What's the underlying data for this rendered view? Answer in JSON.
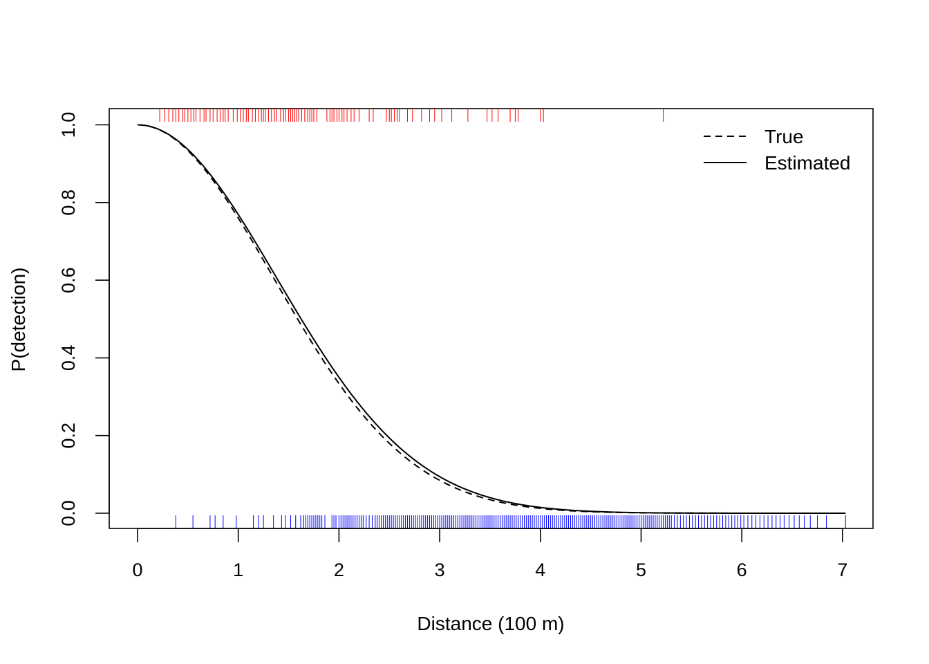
{
  "chart_data": {
    "type": "line",
    "title": "",
    "xlabel": "Distance (100 m)",
    "ylabel": "P(detection)",
    "xlim": [
      -0.29,
      7.3
    ],
    "ylim": [
      -0.04,
      1.04
    ],
    "x_ticks": [
      "0",
      "1",
      "2",
      "3",
      "4",
      "5",
      "6",
      "7"
    ],
    "y_ticks": [
      "0.0",
      "0.2",
      "0.4",
      "0.6",
      "0.8",
      "1.0"
    ],
    "grid": false,
    "legend_position": "top-right",
    "series": [
      {
        "name": "True",
        "style": "dashed",
        "color": "#000000",
        "sigma": 1.35
      },
      {
        "name": "Estimated",
        "style": "solid",
        "color": "#000000",
        "sigma": 1.38
      }
    ],
    "x_range": [
      0,
      7.03
    ],
    "rug_detected": {
      "color": "#ff0000",
      "values": [
        0.22,
        0.27,
        0.31,
        0.35,
        0.38,
        0.41,
        0.45,
        0.47,
        0.5,
        0.53,
        0.56,
        0.58,
        0.62,
        0.66,
        0.68,
        0.72,
        0.75,
        0.79,
        0.82,
        0.85,
        0.87,
        0.9,
        0.95,
        0.99,
        1.02,
        1.05,
        1.08,
        1.1,
        1.14,
        1.17,
        1.2,
        1.23,
        1.25,
        1.27,
        1.3,
        1.33,
        1.36,
        1.38,
        1.42,
        1.45,
        1.47,
        1.5,
        1.52,
        1.54,
        1.56,
        1.58,
        1.6,
        1.63,
        1.66,
        1.69,
        1.71,
        1.73,
        1.75,
        1.78,
        1.88,
        1.91,
        1.93,
        1.95,
        1.98,
        2.0,
        2.03,
        2.05,
        2.08,
        2.12,
        2.15,
        2.2,
        2.3,
        2.34,
        2.47,
        2.5,
        2.52,
        2.55,
        2.58,
        2.6,
        2.68,
        2.73,
        2.82,
        2.9,
        2.95,
        3.02,
        3.12,
        3.28,
        3.47,
        3.52,
        3.58,
        3.7,
        3.75,
        3.78,
        4.0,
        4.03,
        5.22
      ]
    },
    "rug_undetected": {
      "color": "#0000ff",
      "values": [
        0.38,
        0.55,
        0.72,
        0.77,
        0.85,
        0.98,
        1.15,
        1.2,
        1.25,
        1.35,
        1.43,
        1.47,
        1.52,
        1.57,
        1.62,
        1.65,
        1.67,
        1.69,
        1.71,
        1.73,
        1.75,
        1.77,
        1.79,
        1.81,
        1.83,
        1.86,
        1.93,
        1.95,
        1.97,
        2.0,
        2.02,
        2.04,
        2.06,
        2.08,
        2.1,
        2.12,
        2.14,
        2.16,
        2.18,
        2.2,
        2.22,
        2.24,
        2.27,
        2.3,
        2.33,
        2.36,
        2.38,
        2.4,
        2.42,
        2.44,
        2.46,
        2.48,
        2.5,
        2.52,
        2.54,
        2.56,
        2.58,
        2.6,
        2.62,
        2.64,
        2.66,
        2.68,
        2.7,
        2.72,
        2.74,
        2.76,
        2.78,
        2.8,
        2.82,
        2.84,
        2.86,
        2.88,
        2.9,
        2.92,
        2.94,
        2.96,
        2.98,
        3.0,
        3.02,
        3.04,
        3.06,
        3.08,
        3.1,
        3.12,
        3.14,
        3.16,
        3.18,
        3.2,
        3.22,
        3.24,
        3.26,
        3.28,
        3.3,
        3.32,
        3.34,
        3.36,
        3.38,
        3.4,
        3.42,
        3.44,
        3.46,
        3.48,
        3.5,
        3.52,
        3.54,
        3.56,
        3.58,
        3.6,
        3.62,
        3.64,
        3.66,
        3.68,
        3.7,
        3.72,
        3.74,
        3.76,
        3.78,
        3.8,
        3.82,
        3.84,
        3.86,
        3.88,
        3.9,
        3.92,
        3.94,
        3.96,
        3.98,
        4.0,
        4.02,
        4.04,
        4.06,
        4.08,
        4.1,
        4.12,
        4.14,
        4.16,
        4.18,
        4.2,
        4.22,
        4.24,
        4.26,
        4.28,
        4.3,
        4.32,
        4.34,
        4.36,
        4.38,
        4.4,
        4.42,
        4.44,
        4.46,
        4.48,
        4.5,
        4.52,
        4.54,
        4.56,
        4.58,
        4.6,
        4.62,
        4.64,
        4.66,
        4.68,
        4.7,
        4.72,
        4.74,
        4.76,
        4.78,
        4.8,
        4.82,
        4.84,
        4.86,
        4.88,
        4.9,
        4.92,
        4.94,
        4.96,
        4.98,
        5.0,
        5.02,
        5.04,
        5.06,
        5.08,
        5.1,
        5.12,
        5.14,
        5.16,
        5.18,
        5.2,
        5.22,
        5.24,
        5.26,
        5.28,
        5.3,
        5.33,
        5.36,
        5.39,
        5.42,
        5.45,
        5.48,
        5.51,
        5.54,
        5.57,
        5.6,
        5.63,
        5.66,
        5.69,
        5.72,
        5.75,
        5.78,
        5.81,
        5.84,
        5.87,
        5.9,
        5.93,
        5.96,
        5.99,
        6.02,
        6.06,
        6.1,
        6.14,
        6.18,
        6.22,
        6.26,
        6.3,
        6.34,
        6.38,
        6.42,
        6.47,
        6.52,
        6.57,
        6.62,
        6.68,
        6.75,
        6.84,
        7.03
      ]
    }
  }
}
